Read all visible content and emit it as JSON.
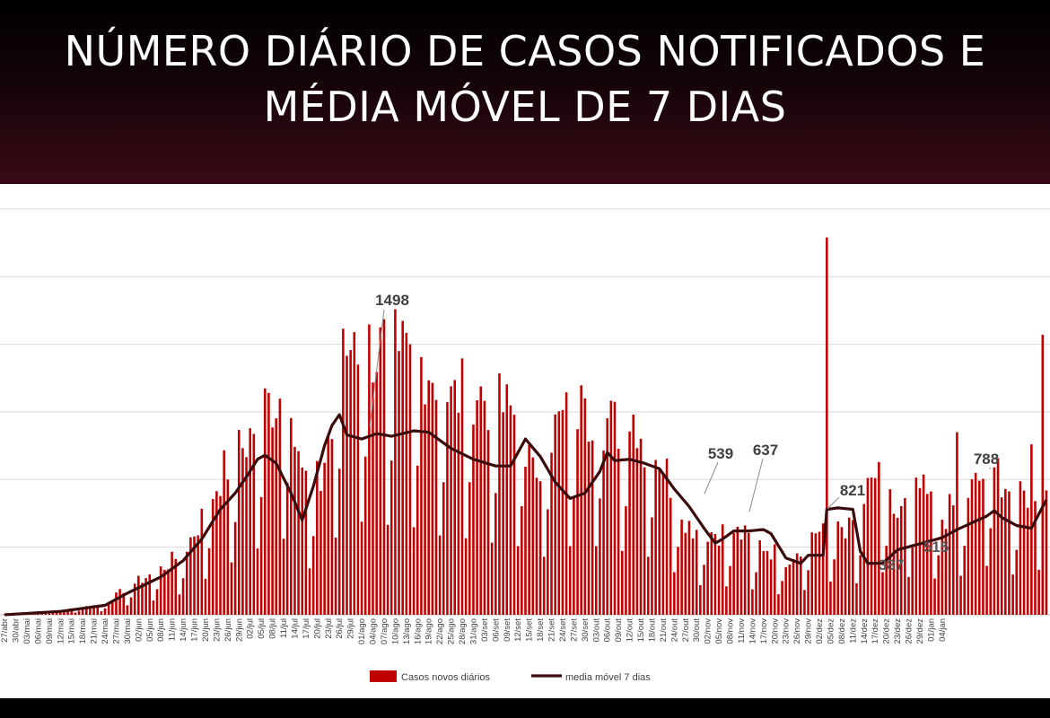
{
  "header": {
    "title_line1": "NÚMERO DIÁRIO DE CASOS NOTIFICADOS E",
    "title_line2": "MÉDIA MÓVEL DE 7 DIAS"
  },
  "colors": {
    "bars": "#c00000",
    "moving_average": "#3b0a0a",
    "header_bg": "#3a0a16",
    "grid": "#d9d9d9"
  },
  "chart_data": {
    "type": "bar",
    "title": "NÚMERO DIÁRIO DE CASOS NOTIFICADOS E MÉDIA MÓVEL DE 7 DIAS",
    "xlabel": "",
    "ylabel": "",
    "grid": true,
    "legend_position": "bottom",
    "ylim": [
      0,
      3000
    ],
    "y_gridlines": [
      0,
      500,
      1000,
      1500,
      2000,
      2500,
      3000
    ],
    "x_tick_labels": [
      "27/abr",
      "30/abr",
      "03/mai",
      "06/mai",
      "09/mai",
      "12/mai",
      "15/mai",
      "18/mai",
      "21/mai",
      "24/mai",
      "27/mai",
      "30/mai",
      "02/jun",
      "05/jun",
      "08/jun",
      "11/jun",
      "14/jun",
      "17/jun",
      "20/jun",
      "23/jun",
      "26/jun",
      "29/jun",
      "02/jul",
      "05/jul",
      "08/jul",
      "11/jul",
      "14/jul",
      "17/jul",
      "20/jul",
      "23/jul",
      "26/jul",
      "29/jul",
      "01/ago",
      "04/ago",
      "07/ago",
      "10/ago",
      "13/ago",
      "16/ago",
      "19/ago",
      "22/ago",
      "25/ago",
      "28/ago",
      "31/ago",
      "03/set",
      "06/set",
      "09/set",
      "12/set",
      "15/set",
      "18/set",
      "21/set",
      "24/set",
      "27/set",
      "30/set",
      "03/out",
      "06/out",
      "09/out",
      "12/out",
      "15/out",
      "18/out",
      "21/out",
      "24/out",
      "27/out",
      "30/out",
      "02/nov",
      "05/nov",
      "08/nov",
      "11/nov",
      "14/nov",
      "17/nov",
      "20/nov",
      "23/nov",
      "26/nov",
      "29/nov",
      "02/dez",
      "05/dez",
      "08/dez",
      "11/dez",
      "14/dez",
      "17/dez",
      "20/dez",
      "23/dez",
      "26/dez",
      "29/dez",
      "01/jan",
      "04/jan"
    ],
    "series": [
      {
        "name": "Casos novos diários",
        "type": "bar",
        "anchors": [
          [
            0,
            0
          ],
          [
            15,
            30
          ],
          [
            27,
            80
          ],
          [
            33,
            200
          ],
          [
            42,
            330
          ],
          [
            48,
            450
          ],
          [
            53,
            700
          ],
          [
            58,
            1000
          ],
          [
            65,
            1250
          ],
          [
            70,
            1500
          ],
          [
            77,
            1650
          ],
          [
            80,
            1000
          ],
          [
            85,
            950
          ],
          [
            90,
            1800
          ],
          [
            94,
            2000
          ],
          [
            100,
            1900
          ],
          [
            106,
            1900
          ],
          [
            114,
            1800
          ],
          [
            120,
            1550
          ],
          [
            126,
            1650
          ],
          [
            132,
            1500
          ],
          [
            138,
            1450
          ],
          [
            142,
            1000
          ],
          [
            146,
            1300
          ],
          [
            152,
            1450
          ],
          [
            156,
            1500
          ],
          [
            162,
            1400
          ],
          [
            170,
            1300
          ],
          [
            176,
            1150
          ],
          [
            184,
            650
          ],
          [
            190,
            600
          ],
          [
            196,
            600
          ],
          [
            204,
            500
          ],
          [
            210,
            400
          ],
          [
            216,
            550
          ],
          [
            222,
            700
          ],
          [
            228,
            600
          ],
          [
            234,
            1000
          ],
          [
            240,
            700
          ],
          [
            246,
            900
          ],
          [
            252,
            700
          ],
          [
            260,
            900
          ],
          [
            266,
            1100
          ],
          [
            272,
            800
          ],
          [
            280,
            1000
          ]
        ],
        "overrides": [
          [
            0,
            5
          ],
          [
            88,
            1300
          ],
          [
            94,
            2090
          ],
          [
            106,
            1950
          ],
          [
            156,
            1600
          ],
          [
            169,
            1480
          ],
          [
            221,
            2790
          ],
          [
            228,
            700
          ],
          [
            256,
            1350
          ],
          [
            266,
            1090
          ],
          [
            276,
            1260
          ],
          [
            279,
            2070
          ]
        ]
      },
      {
        "name": "media móvel 7 dias",
        "type": "line",
        "values": [
          [
            0,
            0
          ],
          [
            15,
            25
          ],
          [
            27,
            70
          ],
          [
            33,
            160
          ],
          [
            42,
            280
          ],
          [
            48,
            400
          ],
          [
            53,
            560
          ],
          [
            58,
            780
          ],
          [
            62,
            900
          ],
          [
            65,
            1020
          ],
          [
            68,
            1150
          ],
          [
            70,
            1180
          ],
          [
            73,
            1120
          ],
          [
            77,
            900
          ],
          [
            80,
            700
          ],
          [
            83,
            950
          ],
          [
            86,
            1250
          ],
          [
            88,
            1400
          ],
          [
            90,
            1480
          ],
          [
            92,
            1330
          ],
          [
            96,
            1300
          ],
          [
            100,
            1340
          ],
          [
            104,
            1320
          ],
          [
            110,
            1360
          ],
          [
            114,
            1350
          ],
          [
            120,
            1230
          ],
          [
            126,
            1150
          ],
          [
            132,
            1100
          ],
          [
            136,
            1100
          ],
          [
            140,
            1300
          ],
          [
            144,
            1170
          ],
          [
            148,
            980
          ],
          [
            152,
            860
          ],
          [
            156,
            900
          ],
          [
            160,
            1060
          ],
          [
            162,
            1200
          ],
          [
            164,
            1140
          ],
          [
            168,
            1150
          ],
          [
            172,
            1120
          ],
          [
            176,
            1080
          ],
          [
            180,
            930
          ],
          [
            184,
            800
          ],
          [
            188,
            640
          ],
          [
            191,
            530
          ],
          [
            193,
            560
          ],
          [
            196,
            620
          ],
          [
            200,
            620
          ],
          [
            204,
            630
          ],
          [
            206,
            600
          ],
          [
            210,
            420
          ],
          [
            214,
            380
          ],
          [
            216,
            440
          ],
          [
            220,
            440
          ],
          [
            221,
            780
          ],
          [
            224,
            790
          ],
          [
            228,
            780
          ],
          [
            230,
            470
          ],
          [
            232,
            380
          ],
          [
            236,
            380
          ],
          [
            240,
            480
          ],
          [
            244,
            510
          ],
          [
            248,
            540
          ],
          [
            252,
            570
          ],
          [
            256,
            630
          ],
          [
            260,
            680
          ],
          [
            264,
            730
          ],
          [
            266,
            770
          ],
          [
            268,
            720
          ],
          [
            272,
            660
          ],
          [
            276,
            640
          ],
          [
            280,
            850
          ]
        ]
      }
    ],
    "annotations": [
      {
        "label": "1498"
      },
      {
        "label": "539"
      },
      {
        "label": "637"
      },
      {
        "label": "821"
      },
      {
        "label": "788"
      },
      {
        "label": "387"
      },
      {
        "label": "515"
      }
    ]
  }
}
